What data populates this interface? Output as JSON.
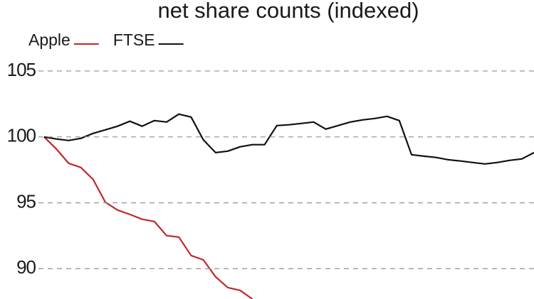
{
  "chart_data": {
    "type": "line",
    "title": "net share counts (indexed)",
    "series": [
      {
        "name": "Apple",
        "color": "#c0282d",
        "values": [
          100,
          99.08,
          98.0,
          97.68,
          96.77,
          95.04,
          94.45,
          94.12,
          93.75,
          93.58,
          92.51,
          92.4,
          91.0,
          90.67,
          89.38,
          88.57,
          88.36,
          87.7,
          null,
          null,
          null,
          null,
          null,
          null,
          null,
          null,
          null,
          null,
          null,
          null,
          null,
          null,
          null,
          null,
          null,
          null,
          null,
          null,
          null,
          null,
          null
        ]
      },
      {
        "name": "FTSE",
        "color": "#111111",
        "values": [
          100,
          99.84,
          99.73,
          99.89,
          100.27,
          100.54,
          100.81,
          101.19,
          100.81,
          101.24,
          101.13,
          101.73,
          101.51,
          99.78,
          98.81,
          98.92,
          99.25,
          99.41,
          99.41,
          100.86,
          100.92,
          101.02,
          101.13,
          100.59,
          100.86,
          101.13,
          101.29,
          101.4,
          101.56,
          101.24,
          98.65,
          98.54,
          98.44,
          98.27,
          98.17,
          98.06,
          97.95,
          98.06,
          98.22,
          98.33,
          98.81
        ]
      }
    ],
    "ylim": [
      87.7,
      105
    ],
    "yticks": [
      90,
      95,
      100,
      105
    ],
    "grid": true
  }
}
